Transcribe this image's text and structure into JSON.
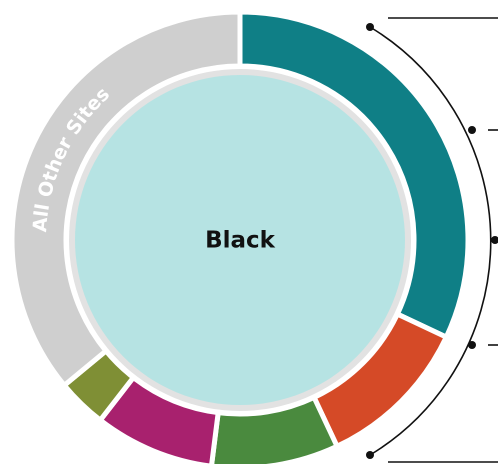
{
  "chart_data": {
    "type": "donut",
    "center_label": "Black",
    "categories": [
      null,
      null,
      null,
      null,
      null,
      "All Other Sites"
    ],
    "values": [
      32,
      11,
      9,
      8.5,
      3.5,
      36
    ],
    "colors": [
      "#0f7f86",
      "#d54a27",
      "#4a8a3e",
      "#a8216e",
      "#7f8f35",
      "#cfcfcf"
    ]
  }
}
